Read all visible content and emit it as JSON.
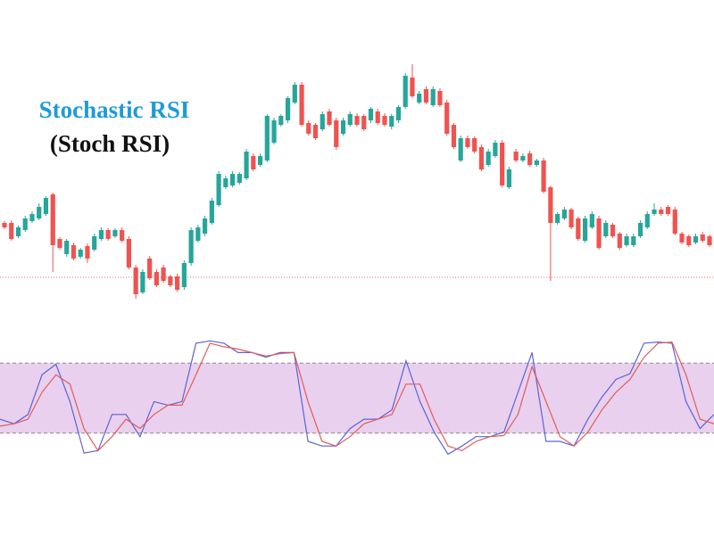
{
  "chart_data": [
    {
      "type": "candlestick",
      "title": "Stochastic RSI",
      "subtitle": "(Stoch RSI)",
      "up_color": "#26a69a",
      "down_color": "#ef5350",
      "ylim": [
        40,
        400
      ],
      "reference_line": 89,
      "open": [
        150,
        150,
        135,
        142,
        152,
        155,
        160,
        182,
        132,
        115,
        125,
        112,
        124,
        120,
        132,
        142,
        135,
        142,
        132,
        100,
        72,
        110,
        95,
        100,
        90,
        90,
        78,
        105,
        130,
        138,
        150,
        170,
        190,
        192,
        195,
        200,
        225,
        215,
        220,
        240,
        260,
        265,
        285,
        305,
        262,
        260,
        255,
        275,
        265,
        250,
        260,
        270,
        270,
        265,
        275,
        270,
        258,
        265,
        280,
        313,
        285,
        300,
        282,
        298,
        285,
        260,
        220,
        245,
        245,
        235,
        215,
        225,
        240,
        190,
        230,
        220,
        228,
        215,
        220,
        190,
        150,
        155,
        165,
        155,
        130,
        145,
        155,
        135,
        148,
        138,
        125,
        125,
        135,
        145,
        160,
        165,
        168,
        165,
        138,
        135,
        128,
        137,
        135
      ],
      "high": [
        152,
        153,
        147,
        158,
        163,
        172,
        180,
        184,
        134,
        132,
        128,
        122,
        127,
        138,
        145,
        144,
        144,
        145,
        135,
        103,
        98,
        113,
        98,
        103,
        92,
        93,
        108,
        145,
        148,
        158,
        178,
        208,
        203,
        208,
        207,
        233,
        228,
        228,
        272,
        268,
        272,
        292,
        308,
        308,
        265,
        262,
        275,
        278,
        268,
        268,
        275,
        273,
        272,
        280,
        278,
        273,
        272,
        282,
        318,
        328,
        298,
        303,
        303,
        301,
        288,
        262,
        248,
        248,
        247,
        238,
        233,
        243,
        243,
        213,
        233,
        228,
        231,
        222,
        223,
        192,
        162,
        168,
        167,
        157,
        158,
        163,
        158,
        153,
        150,
        140,
        138,
        138,
        153,
        163,
        172,
        168,
        170,
        168,
        140,
        137,
        138,
        140,
        137
      ],
      "low": [
        143,
        130,
        133,
        140,
        150,
        153,
        158,
        95,
        120,
        112,
        108,
        110,
        105,
        118,
        130,
        130,
        133,
        128,
        98,
        65,
        70,
        86,
        78,
        83,
        78,
        73,
        75,
        102,
        128,
        135,
        148,
        168,
        188,
        190,
        193,
        198,
        208,
        213,
        218,
        238,
        258,
        262,
        283,
        258,
        248,
        243,
        253,
        258,
        232,
        248,
        258,
        258,
        253,
        262,
        260,
        258,
        255,
        262,
        278,
        290,
        283,
        283,
        280,
        280,
        248,
        233,
        218,
        233,
        228,
        208,
        213,
        223,
        190,
        188,
        218,
        218,
        213,
        213,
        183,
        85,
        148,
        153,
        143,
        130,
        128,
        143,
        120,
        133,
        133,
        120,
        123,
        123,
        133,
        143,
        158,
        158,
        158,
        136,
        126,
        123,
        126,
        128,
        123
      ],
      "close": [
        145,
        132,
        145,
        155,
        160,
        168,
        178,
        125,
        122,
        130,
        110,
        120,
        110,
        135,
        142,
        132,
        142,
        130,
        100,
        70,
        95,
        88,
        80,
        85,
        80,
        75,
        105,
        142,
        145,
        155,
        175,
        205,
        200,
        205,
        205,
        230,
        210,
        225,
        270,
        265,
        270,
        290,
        305,
        260,
        250,
        245,
        272,
        260,
        235,
        265,
        272,
        260,
        255,
        278,
        262,
        260,
        270,
        280,
        315,
        292,
        295,
        285,
        300,
        282,
        250,
        235,
        245,
        235,
        230,
        210,
        230,
        240,
        192,
        210,
        220,
        225,
        215,
        220,
        185,
        150,
        160,
        165,
        145,
        132,
        155,
        160,
        122,
        150,
        135,
        122,
        135,
        135,
        150,
        160,
        165,
        160,
        160,
        138,
        128,
        125,
        135,
        130,
        125
      ]
    },
    {
      "type": "line",
      "ylim": [
        0,
        100
      ],
      "band": [
        20,
        80
      ],
      "band_color": "#9c27b0",
      "series": [
        {
          "color": "#5b63d6",
          "values": [
            32,
            28,
            36,
            70,
            79,
            47,
            3,
            5,
            36,
            36,
            17,
            47,
            44,
            47,
            97,
            99,
            97,
            89,
            89,
            85,
            89,
            89,
            13,
            9,
            9,
            24,
            32,
            32,
            40,
            82,
            47,
            21,
            2,
            9,
            17,
            17,
            21,
            55,
            89,
            13,
            13,
            9,
            32,
            51,
            66,
            71,
            97,
            98,
            97,
            47,
            24,
            36
          ]
        },
        {
          "color": "#e35b5b",
          "values": [
            26,
            28,
            32,
            55,
            70,
            62,
            24,
            5,
            17,
            32,
            24,
            36,
            44,
            44,
            70,
            97,
            94,
            92,
            89,
            86,
            88,
            89,
            47,
            13,
            9,
            17,
            28,
            32,
            36,
            62,
            62,
            32,
            9,
            5,
            13,
            17,
            18,
            36,
            77,
            47,
            17,
            9,
            21,
            40,
            55,
            66,
            85,
            97,
            98,
            70,
            32,
            28
          ]
        }
      ]
    }
  ]
}
